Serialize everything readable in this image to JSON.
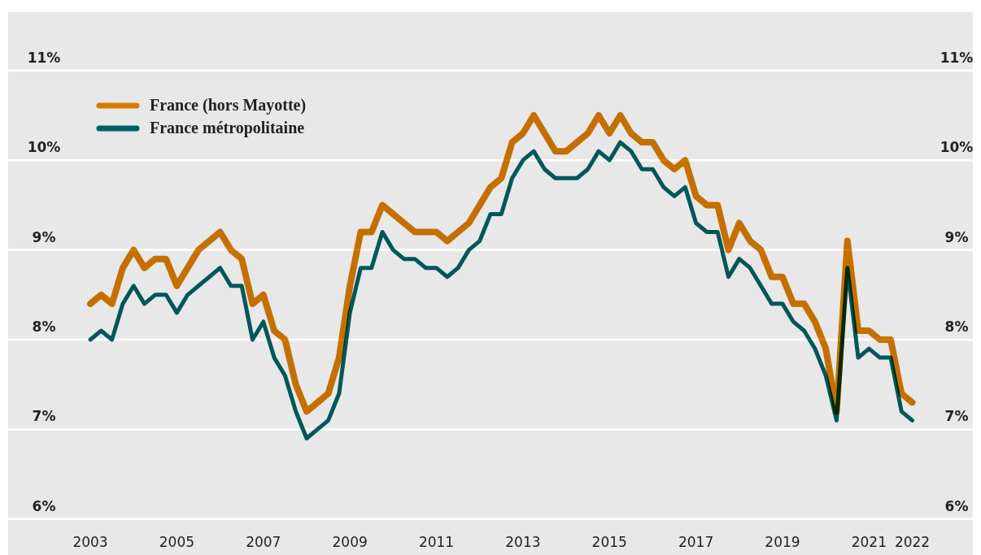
{
  "chart_data": {
    "type": "line",
    "x": [
      2003,
      2003.25,
      2003.5,
      2003.75,
      2004,
      2004.25,
      2004.5,
      2004.75,
      2005,
      2005.25,
      2005.5,
      2005.75,
      2006,
      2006.25,
      2006.5,
      2006.75,
      2007,
      2007.25,
      2007.5,
      2007.75,
      2008,
      2008.25,
      2008.5,
      2008.75,
      2009,
      2009.25,
      2009.5,
      2009.75,
      2010,
      2010.25,
      2010.5,
      2010.75,
      2011,
      2011.25,
      2011.5,
      2011.75,
      2012,
      2012.25,
      2012.5,
      2012.75,
      2013,
      2013.25,
      2013.5,
      2013.75,
      2014,
      2014.25,
      2014.5,
      2014.75,
      2015,
      2015.25,
      2015.5,
      2015.75,
      2016,
      2016.25,
      2016.5,
      2016.75,
      2017,
      2017.25,
      2017.5,
      2017.75,
      2018,
      2018.25,
      2018.5,
      2018.75,
      2019,
      2019.25,
      2019.5,
      2019.75,
      2020,
      2020.25,
      2020.5,
      2020.75,
      2021,
      2021.25,
      2021.5,
      2021.75,
      2022
    ],
    "series": [
      {
        "name": "France (hors Mayotte)",
        "color": "#d97a00",
        "values": [
          8.4,
          8.5,
          8.4,
          8.8,
          9.0,
          8.8,
          8.9,
          8.9,
          8.6,
          8.8,
          9.0,
          9.1,
          9.2,
          9.0,
          8.9,
          8.4,
          8.5,
          8.1,
          8.0,
          7.5,
          7.2,
          7.3,
          7.4,
          7.8,
          8.6,
          9.2,
          9.2,
          9.5,
          9.4,
          9.3,
          9.2,
          9.2,
          9.2,
          9.1,
          9.2,
          9.3,
          9.5,
          9.7,
          9.8,
          10.2,
          10.3,
          10.5,
          10.3,
          10.1,
          10.1,
          10.2,
          10.3,
          10.5,
          10.3,
          10.5,
          10.3,
          10.2,
          10.2,
          10.0,
          9.9,
          10.0,
          9.6,
          9.5,
          9.5,
          9.0,
          9.3,
          9.1,
          9.0,
          8.7,
          8.7,
          8.4,
          8.4,
          8.2,
          7.9,
          7.2,
          9.1,
          8.1,
          8.1,
          8.0,
          8.0,
          7.4,
          7.3
        ]
      },
      {
        "name": "France métropolitaine",
        "color": "#005f63",
        "values": [
          8.0,
          8.1,
          8.0,
          8.4,
          8.6,
          8.4,
          8.5,
          8.5,
          8.3,
          8.5,
          8.6,
          8.7,
          8.8,
          8.6,
          8.6,
          8.0,
          8.2,
          7.8,
          7.6,
          7.2,
          6.9,
          7.0,
          7.1,
          7.4,
          8.3,
          8.8,
          8.8,
          9.2,
          9.0,
          8.9,
          8.9,
          8.8,
          8.8,
          8.7,
          8.8,
          9.0,
          9.1,
          9.4,
          9.4,
          9.8,
          10.0,
          10.1,
          9.9,
          9.8,
          9.8,
          9.8,
          9.9,
          10.1,
          10.0,
          10.2,
          10.1,
          9.9,
          9.9,
          9.7,
          9.6,
          9.7,
          9.3,
          9.2,
          9.2,
          8.7,
          8.9,
          8.8,
          8.6,
          8.4,
          8.4,
          8.2,
          8.1,
          7.9,
          7.6,
          7.1,
          8.8,
          7.8,
          7.9,
          7.8,
          7.8,
          7.2,
          7.1
        ]
      }
    ],
    "xlim": [
      2001.1,
      2023.4
    ],
    "xticks": [
      2003,
      2005,
      2007,
      2009,
      2011,
      2013,
      2015,
      2017,
      2019,
      2021,
      2022
    ],
    "ylim": [
      5.6,
      11.65
    ],
    "yticks": [
      {
        "value": 6,
        "label": "6%"
      },
      {
        "value": 7,
        "label": "7%"
      },
      {
        "value": 8,
        "label": "8%"
      },
      {
        "value": 9,
        "label": "9%"
      },
      {
        "value": 10,
        "label": "10%"
      },
      {
        "value": 11,
        "label": "11%"
      }
    ],
    "grid": "y",
    "legend": "top left",
    "marker": "none",
    "line_style": "solid"
  }
}
